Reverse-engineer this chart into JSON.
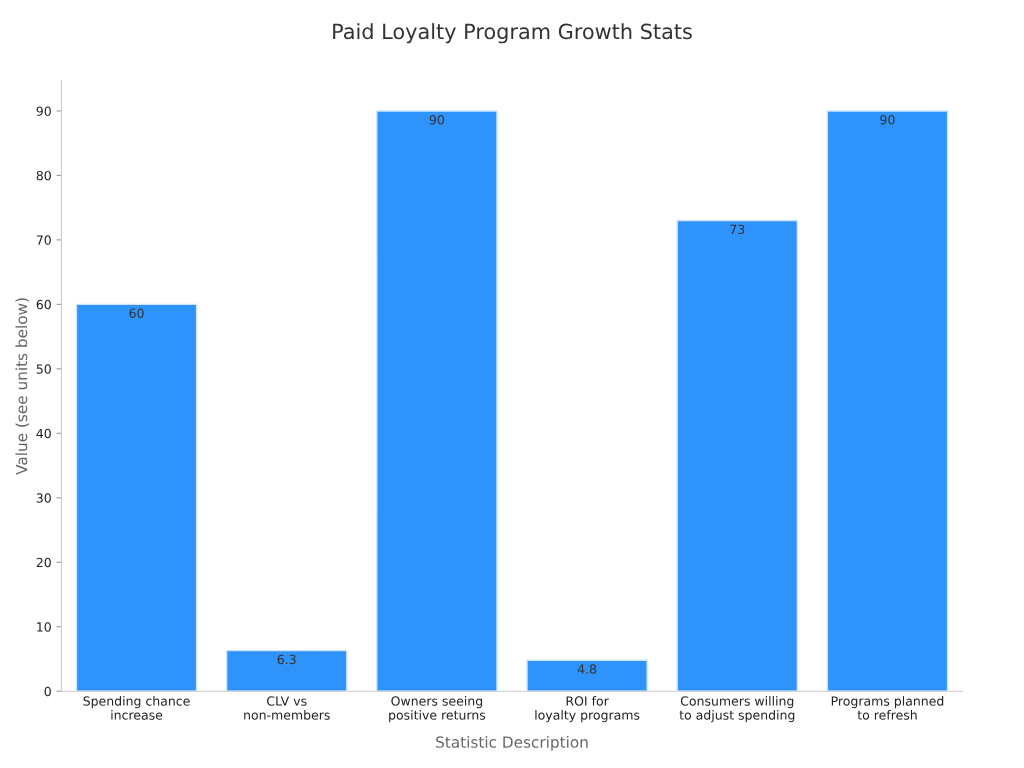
{
  "chart_data": {
    "type": "bar",
    "title": "Paid Loyalty Program Growth Stats",
    "xlabel": "Statistic Description",
    "ylabel": "Value (see units below)",
    "categories": [
      "Spending chance\nincrease",
      "CLV vs\nnon-members",
      "Owners seeing\npositive returns",
      "ROI for\nloyalty programs",
      "Consumers willing\nto adjust spending",
      "Programs planned\nto refresh"
    ],
    "values": [
      60,
      6.3,
      90,
      4.8,
      73,
      90
    ],
    "color": "#2e93fa",
    "ylim": [
      0,
      94.7
    ],
    "yticks": [
      0,
      10,
      20,
      30,
      40,
      50,
      60,
      70,
      80,
      90
    ],
    "grid": false,
    "data_labels": true
  }
}
